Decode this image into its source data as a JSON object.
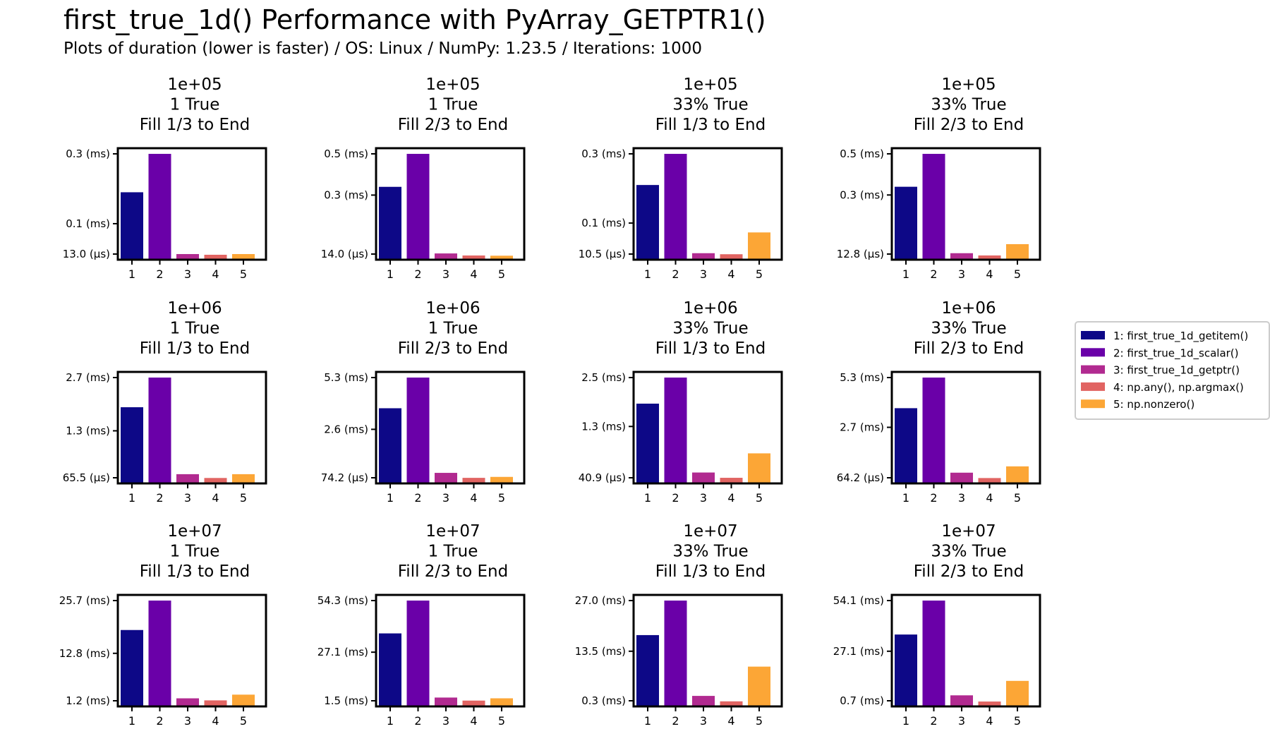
{
  "figure": {
    "title": "first_true_1d() Performance with PyArray_GETPTR1()",
    "subtitle": "Plots of duration (lower is faster) / OS: Linux / NumPy: 1.23.5 / Iterations: 1000"
  },
  "colors": [
    "#0d0887",
    "#6a00a8",
    "#b12a90",
    "#e16462",
    "#fca636"
  ],
  "chart_data": {
    "type": "bar",
    "layout": "grid 3 rows x 4 columns, shared legend right-center",
    "categories": [
      "1",
      "2",
      "3",
      "4",
      "5"
    ],
    "legend": [
      "1: first_true_1d_getitem()",
      "2: first_true_1d_scalar()",
      "3: first_true_1d_getptr()",
      "4: np.any(), np.argmax()",
      "5: np.nonzero()"
    ],
    "legend_position": "right-center",
    "grid": false,
    "panels": [
      {
        "title": [
          "1e+05",
          "1 True",
          "Fill 1/3 to End"
        ],
        "ticks": [
          {
            "v": 13.0,
            "label": "13.0 (µs)"
          },
          {
            "v": 0.1,
            "label": "0.1 (ms)"
          },
          {
            "v": 0.3,
            "label": "0.3 (ms)"
          }
        ],
        "unit": "ms",
        "values": [
          0.19,
          0.3,
          0.013,
          0.011,
          0.013
        ]
      },
      {
        "title": [
          "1e+05",
          "1 True",
          "Fill 2/3 to End"
        ],
        "ticks": [
          {
            "v": 14.0,
            "label": "14.0 (µs)"
          },
          {
            "v": 0.3,
            "label": "0.3 (ms)"
          },
          {
            "v": 0.5,
            "label": "0.5 (ms)"
          }
        ],
        "unit": "ms",
        "values": [
          0.34,
          0.5,
          0.017,
          0.007,
          0.006
        ]
      },
      {
        "title": [
          "1e+05",
          "33% True",
          "Fill 1/3 to End"
        ],
        "ticks": [
          {
            "v": 10.5,
            "label": "10.5 (µs)"
          },
          {
            "v": 0.1,
            "label": "0.1 (ms)"
          },
          {
            "v": 0.3,
            "label": "0.3 (ms)"
          }
        ],
        "unit": "ms",
        "values": [
          0.21,
          0.3,
          0.013,
          0.01,
          0.073
        ]
      },
      {
        "title": [
          "1e+05",
          "33% True",
          "Fill 2/3 to End"
        ],
        "ticks": [
          {
            "v": 12.8,
            "label": "12.8 (µs)"
          },
          {
            "v": 0.3,
            "label": "0.3 (ms)"
          },
          {
            "v": 0.5,
            "label": "0.5 (ms)"
          }
        ],
        "unit": "ms",
        "values": [
          0.34,
          0.5,
          0.017,
          0.006,
          0.061
        ]
      },
      {
        "title": [
          "1e+06",
          "1 True",
          "Fill 1/3 to End"
        ],
        "ticks": [
          {
            "v": 65.5,
            "label": "65.5 (µs)"
          },
          {
            "v": 1.3,
            "label": "1.3 (ms)"
          },
          {
            "v": 2.7,
            "label": "2.7 (ms)"
          }
        ],
        "unit": "ms",
        "values": [
          1.92,
          2.7,
          0.16,
          0.06,
          0.16
        ]
      },
      {
        "title": [
          "1e+06",
          "1 True",
          "Fill 2/3 to End"
        ],
        "ticks": [
          {
            "v": 74.2,
            "label": "74.2 (µs)"
          },
          {
            "v": 2.6,
            "label": "2.6 (ms)"
          },
          {
            "v": 5.3,
            "label": "5.3 (ms)"
          }
        ],
        "unit": "ms",
        "values": [
          3.7,
          5.3,
          0.33,
          0.07,
          0.12
        ]
      },
      {
        "title": [
          "1e+06",
          "33% True",
          "Fill 1/3 to End"
        ],
        "ticks": [
          {
            "v": 40.9,
            "label": "40.9 (µs)"
          },
          {
            "v": 1.3,
            "label": "1.3 (ms)"
          },
          {
            "v": 2.5,
            "label": "2.5 (ms)"
          }
        ],
        "unit": "ms",
        "values": [
          1.86,
          2.5,
          0.17,
          0.04,
          0.64
        ]
      },
      {
        "title": [
          "1e+06",
          "33% True",
          "Fill 2/3 to End"
        ],
        "ticks": [
          {
            "v": 64.2,
            "label": "64.2 (µs)"
          },
          {
            "v": 2.7,
            "label": "2.7 (ms)"
          },
          {
            "v": 5.3,
            "label": "5.3 (ms)"
          }
        ],
        "unit": "ms",
        "values": [
          3.7,
          5.3,
          0.33,
          0.05,
          0.66
        ]
      },
      {
        "title": [
          "1e+07",
          "1 True",
          "Fill 1/3 to End"
        ],
        "ticks": [
          {
            "v": 1.2,
            "label": "1.2 (ms)"
          },
          {
            "v": 12.8,
            "label": "12.8 (ms)"
          },
          {
            "v": 25.7,
            "label": "25.7 (ms)"
          }
        ],
        "unit": "ms",
        "values": [
          18.5,
          25.7,
          1.8,
          1.3,
          2.7
        ]
      },
      {
        "title": [
          "1e+07",
          "1 True",
          "Fill 2/3 to End"
        ],
        "ticks": [
          {
            "v": 1.5,
            "label": "1.5 (ms)"
          },
          {
            "v": 27.1,
            "label": "27.1 (ms)"
          },
          {
            "v": 54.3,
            "label": "54.3 (ms)"
          }
        ],
        "unit": "ms",
        "values": [
          37.0,
          54.3,
          3.2,
          1.6,
          2.8
        ]
      },
      {
        "title": [
          "1e+07",
          "33% True",
          "Fill 1/3 to End"
        ],
        "ticks": [
          {
            "v": 0.3,
            "label": "0.3 (ms)"
          },
          {
            "v": 13.5,
            "label": "13.5 (ms)"
          },
          {
            "v": 27.0,
            "label": "27.0 (ms)"
          }
        ],
        "unit": "ms",
        "values": [
          17.8,
          27.0,
          1.6,
          0.15,
          9.4
        ]
      },
      {
        "title": [
          "1e+07",
          "33% True",
          "Fill 2/3 to End"
        ],
        "ticks": [
          {
            "v": 0.7,
            "label": "0.7 (ms)"
          },
          {
            "v": 27.1,
            "label": "27.1 (ms)"
          },
          {
            "v": 54.1,
            "label": "54.1 (ms)"
          }
        ],
        "unit": "ms",
        "values": [
          36.0,
          54.1,
          3.6,
          0.3,
          11.3
        ]
      }
    ]
  }
}
